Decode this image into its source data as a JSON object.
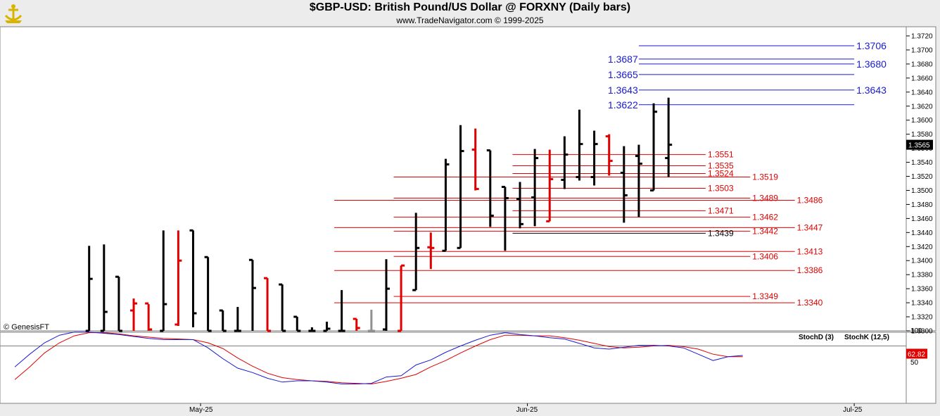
{
  "header": {
    "title": "$GBP-USD:  British Pound/US Dollar @ FORXNY  (Daily bars)",
    "subtitle": "www.TradeNavigator.com © 1999-2025",
    "watermark": "© GenesisFT",
    "logo_icon": "ship-anchor-icon"
  },
  "colors": {
    "up_bar": "#000000",
    "down_bar": "#e00000",
    "neutral_bar": "#909090",
    "blue_level": "#1a1ad0",
    "red_level": "#e00000",
    "stoch_k": "#1a1ad0",
    "stoch_d": "#e00000",
    "last_price_bg": "#000000",
    "stoch_value_bg": "#e00000"
  },
  "chart_data": [
    {
      "type": "bar",
      "subtype": "ohlc",
      "title": "$GBP-USD:  British Pound/US Dollar @ FORXNY  (Daily bars)",
      "ylim": [
        1.33,
        1.372
      ],
      "y_ticks": [
        "1.3720",
        "1.3700",
        "1.3680",
        "1.3660",
        "1.3640",
        "1.3620",
        "1.3600",
        "1.3580",
        "1.3560",
        "1.3540",
        "1.3520",
        "1.3500",
        "1.3480",
        "1.3460",
        "1.3440",
        "1.3420",
        "1.3400",
        "1.3380",
        "1.3360",
        "1.3340",
        "1.3320",
        "1.3300"
      ],
      "x_ticks": [
        {
          "label": "May-25",
          "index": 7.5
        },
        {
          "label": "Jun-25",
          "index": 29.5
        },
        {
          "label": "Jul-25",
          "index": 51.5
        }
      ],
      "x_range": [
        -6,
        55
      ],
      "last_price": "1.3565",
      "bars": [
        {
          "i": 0,
          "o": 1.33,
          "h": 1.3421,
          "l": 1.33,
          "c": 1.3374,
          "color": "up"
        },
        {
          "i": 1,
          "o": 1.33,
          "h": 1.3423,
          "l": 1.33,
          "c": 1.3327,
          "color": "up"
        },
        {
          "i": 2,
          "o": 1.3377,
          "h": 1.3377,
          "l": 1.33,
          "c": 1.33,
          "color": "up"
        },
        {
          "i": 3,
          "o": 1.3329,
          "h": 1.3346,
          "l": 1.33,
          "c": 1.3339,
          "color": "down"
        },
        {
          "i": 4,
          "o": 1.3339,
          "h": 1.3338,
          "l": 1.33,
          "c": 1.3302,
          "color": "down"
        },
        {
          "i": 5,
          "o": 1.33,
          "h": 1.3443,
          "l": 1.33,
          "c": 1.3338,
          "color": "up"
        },
        {
          "i": 6,
          "o": 1.3309,
          "h": 1.3443,
          "l": 1.3307,
          "c": 1.34,
          "color": "down"
        },
        {
          "i": 7,
          "o": 1.3443,
          "h": 1.3443,
          "l": 1.3305,
          "c": 1.3325,
          "color": "up"
        },
        {
          "i": 8,
          "o": 1.3405,
          "h": 1.3405,
          "l": 1.33,
          "c": 1.33,
          "color": "up"
        },
        {
          "i": 9,
          "o": 1.3329,
          "h": 1.3329,
          "l": 1.33,
          "c": 1.33,
          "color": "up"
        },
        {
          "i": 10,
          "o": 1.33,
          "h": 1.3334,
          "l": 1.33,
          "c": 1.33,
          "color": "up"
        },
        {
          "i": 11,
          "o": 1.3401,
          "h": 1.3401,
          "l": 1.33,
          "c": 1.3361,
          "color": "up"
        },
        {
          "i": 12,
          "o": 1.3375,
          "h": 1.3375,
          "l": 1.33,
          "c": 1.33,
          "color": "down"
        },
        {
          "i": 13,
          "o": 1.3366,
          "h": 1.3366,
          "l": 1.33,
          "c": 1.33,
          "color": "up"
        },
        {
          "i": 14,
          "o": 1.332,
          "h": 1.332,
          "l": 1.33,
          "c": 1.33,
          "color": "up"
        },
        {
          "i": 15,
          "o": 1.33,
          "h": 1.3305,
          "l": 1.33,
          "c": 1.33,
          "color": "up"
        },
        {
          "i": 16,
          "o": 1.33,
          "h": 1.3313,
          "l": 1.33,
          "c": 1.3303,
          "color": "up"
        },
        {
          "i": 17,
          "o": 1.33,
          "h": 1.3358,
          "l": 1.33,
          "c": 1.33,
          "color": "up"
        },
        {
          "i": 18,
          "o": 1.3317,
          "h": 1.3317,
          "l": 1.33,
          "c": 1.3304,
          "color": "down"
        },
        {
          "i": 19,
          "o": 1.33,
          "h": 1.333,
          "l": 1.33,
          "c": 1.33,
          "color": "neutral"
        },
        {
          "i": 20,
          "o": 1.3302,
          "h": 1.3402,
          "l": 1.33,
          "c": 1.336,
          "color": "up"
        },
        {
          "i": 21,
          "o": 1.33,
          "h": 1.3393,
          "l": 1.33,
          "c": 1.3393,
          "color": "down"
        },
        {
          "i": 22,
          "o": 1.3358,
          "h": 1.3468,
          "l": 1.3358,
          "c": 1.3418,
          "color": "up"
        },
        {
          "i": 23,
          "o": 1.3419,
          "h": 1.344,
          "l": 1.3388,
          "c": 1.3418,
          "color": "down"
        },
        {
          "i": 24,
          "o": 1.3414,
          "h": 1.3545,
          "l": 1.3414,
          "c": 1.3537,
          "color": "up"
        },
        {
          "i": 25,
          "o": 1.3418,
          "h": 1.3593,
          "l": 1.3418,
          "c": 1.3556,
          "color": "up"
        },
        {
          "i": 26,
          "o": 1.3558,
          "h": 1.3588,
          "l": 1.35,
          "c": 1.3502,
          "color": "down"
        },
        {
          "i": 27,
          "o": 1.3557,
          "h": 1.3557,
          "l": 1.3448,
          "c": 1.3464,
          "color": "up"
        },
        {
          "i": 28,
          "o": 1.3505,
          "h": 1.3505,
          "l": 1.3414,
          "c": 1.3489,
          "color": "up"
        },
        {
          "i": 29,
          "o": 1.3488,
          "h": 1.3512,
          "l": 1.3446,
          "c": 1.3452,
          "color": "up"
        },
        {
          "i": 30,
          "o": 1.349,
          "h": 1.3559,
          "l": 1.3449,
          "c": 1.3546,
          "color": "up"
        },
        {
          "i": 31,
          "o": 1.3456,
          "h": 1.3558,
          "l": 1.3456,
          "c": 1.3516,
          "color": "down"
        },
        {
          "i": 32,
          "o": 1.3515,
          "h": 1.3577,
          "l": 1.3502,
          "c": 1.3551,
          "color": "up"
        },
        {
          "i": 33,
          "o": 1.3519,
          "h": 1.3615,
          "l": 1.3514,
          "c": 1.3566,
          "color": "up"
        },
        {
          "i": 34,
          "o": 1.3519,
          "h": 1.3585,
          "l": 1.3507,
          "c": 1.3566,
          "color": "up"
        },
        {
          "i": 35,
          "o": 1.3577,
          "h": 1.358,
          "l": 1.3521,
          "c": 1.3542,
          "color": "down"
        },
        {
          "i": 36,
          "o": 1.3525,
          "h": 1.3563,
          "l": 1.3454,
          "c": 1.3493,
          "color": "up"
        },
        {
          "i": 37,
          "o": 1.3549,
          "h": 1.3565,
          "l": 1.3462,
          "c": 1.3538,
          "color": "up"
        },
        {
          "i": 38,
          "o": 1.35,
          "h": 1.3624,
          "l": 1.35,
          "c": 1.3612,
          "color": "up"
        },
        {
          "i": 39,
          "o": 1.3546,
          "h": 1.3632,
          "l": 1.3519,
          "c": 1.3565,
          "color": "up"
        }
      ],
      "levels": [
        {
          "value": 1.3706,
          "label": "1.3706",
          "color": "blue",
          "x_from": 37,
          "x_to": 51.5,
          "label_side": "right"
        },
        {
          "value": 1.3687,
          "label": "1.3687",
          "color": "blue",
          "x_from": 37,
          "x_to": 51.5,
          "label_side": "left"
        },
        {
          "value": 1.368,
          "label": "1.3680",
          "color": "blue",
          "x_from": 37,
          "x_to": 51.5,
          "label_side": "right"
        },
        {
          "value": 1.3665,
          "label": "1.3665",
          "color": "blue",
          "x_from": 37,
          "x_to": 51.5,
          "label_side": "left"
        },
        {
          "value": 1.3643,
          "label": "1.3643",
          "color": "blue",
          "x_from": 37,
          "x_to": 51.5,
          "label_side": "both"
        },
        {
          "value": 1.3622,
          "label": "1.3622",
          "color": "blue",
          "x_from": 37,
          "x_to": 51.5,
          "label_side": "left"
        },
        {
          "value": 1.3551,
          "label": "1.3551",
          "color": "red",
          "x_from": 28.5,
          "x_to": 41.5,
          "label_side": "right"
        },
        {
          "value": 1.3535,
          "label": "1.3535",
          "color": "red",
          "x_from": 28.5,
          "x_to": 41.5,
          "label_side": "right"
        },
        {
          "value": 1.3524,
          "label": "1.3524",
          "color": "red",
          "x_from": 28.5,
          "x_to": 41.5,
          "label_side": "right"
        },
        {
          "value": 1.3519,
          "label": "1.3519",
          "color": "red",
          "x_from": 20.5,
          "x_to": 44.5,
          "label_side": "right"
        },
        {
          "value": 1.3503,
          "label": "1.3503",
          "color": "red",
          "x_from": 28.5,
          "x_to": 41.5,
          "label_side": "right"
        },
        {
          "value": 1.3489,
          "label": "1.3489",
          "color": "red",
          "x_from": 20.5,
          "x_to": 44.5,
          "label_side": "right"
        },
        {
          "value": 1.3486,
          "label": "1.3486",
          "color": "red",
          "x_from": 16.5,
          "x_to": 47.5,
          "label_side": "right"
        },
        {
          "value": 1.3471,
          "label": "1.3471",
          "color": "red",
          "x_from": 28.5,
          "x_to": 41.5,
          "label_side": "right"
        },
        {
          "value": 1.3462,
          "label": "1.3462",
          "color": "red",
          "x_from": 20.5,
          "x_to": 44.5,
          "label_side": "right"
        },
        {
          "value": 1.3447,
          "label": "1.3447",
          "color": "red",
          "x_from": 16.5,
          "x_to": 47.5,
          "label_side": "right"
        },
        {
          "value": 1.3442,
          "label": "1.3442",
          "color": "red",
          "x_from": 20.5,
          "x_to": 44.5,
          "label_side": "right"
        },
        {
          "value": 1.3439,
          "label": "1.3439",
          "color": "black",
          "x_from": 28.5,
          "x_to": 41.5,
          "label_side": "right"
        },
        {
          "value": 1.3413,
          "label": "1.3413",
          "color": "red",
          "x_from": 16.5,
          "x_to": 47.5,
          "label_side": "right"
        },
        {
          "value": 1.3406,
          "label": "1.3406",
          "color": "red",
          "x_from": 20.5,
          "x_to": 44.5,
          "label_side": "right"
        },
        {
          "value": 1.3386,
          "label": "1.3386",
          "color": "red",
          "x_from": 16.5,
          "x_to": 47.5,
          "label_side": "right"
        },
        {
          "value": 1.3349,
          "label": "1.3349",
          "color": "red",
          "x_from": 20.5,
          "x_to": 44.5,
          "label_side": "right"
        },
        {
          "value": 1.334,
          "label": "1.3340",
          "color": "red",
          "x_from": 16.5,
          "x_to": 47.5,
          "label_side": "right"
        }
      ]
    },
    {
      "type": "line",
      "ylim": [
        0,
        100
      ],
      "y_ticks": [
        "100",
        "50"
      ],
      "reference_line": 75,
      "legend": [
        {
          "label": "StochD (3)",
          "color": "red"
        },
        {
          "label": "StochK (12,5)",
          "color": "blue"
        }
      ],
      "last_value": "62.82",
      "x_start": -5,
      "series": [
        {
          "name": "StochK (12,5)",
          "color": "blue",
          "values": [
            42,
            62,
            80,
            92,
            97,
            97,
            95,
            93,
            90,
            87,
            85,
            85,
            85,
            72,
            55,
            40,
            33,
            24,
            18,
            20,
            20,
            18,
            15,
            15,
            16,
            26,
            28,
            45,
            53,
            65,
            75,
            84,
            92,
            96,
            93,
            91,
            88,
            86,
            79,
            72,
            70,
            73,
            76,
            76,
            75,
            72,
            62,
            52,
            58,
            60
          ]
        },
        {
          "name": "StochD (3)",
          "color": "red",
          "values": [
            22,
            42,
            64,
            80,
            91,
            96,
            96,
            94,
            91,
            89,
            87,
            86,
            85,
            80,
            71,
            56,
            43,
            32,
            25,
            22,
            20,
            19,
            17,
            16,
            15,
            19,
            24,
            30,
            42,
            52,
            64,
            75,
            85,
            92,
            92,
            91,
            91,
            88,
            84,
            79,
            74,
            72,
            73,
            75,
            76,
            74,
            70,
            62,
            58,
            58
          ]
        }
      ]
    }
  ]
}
